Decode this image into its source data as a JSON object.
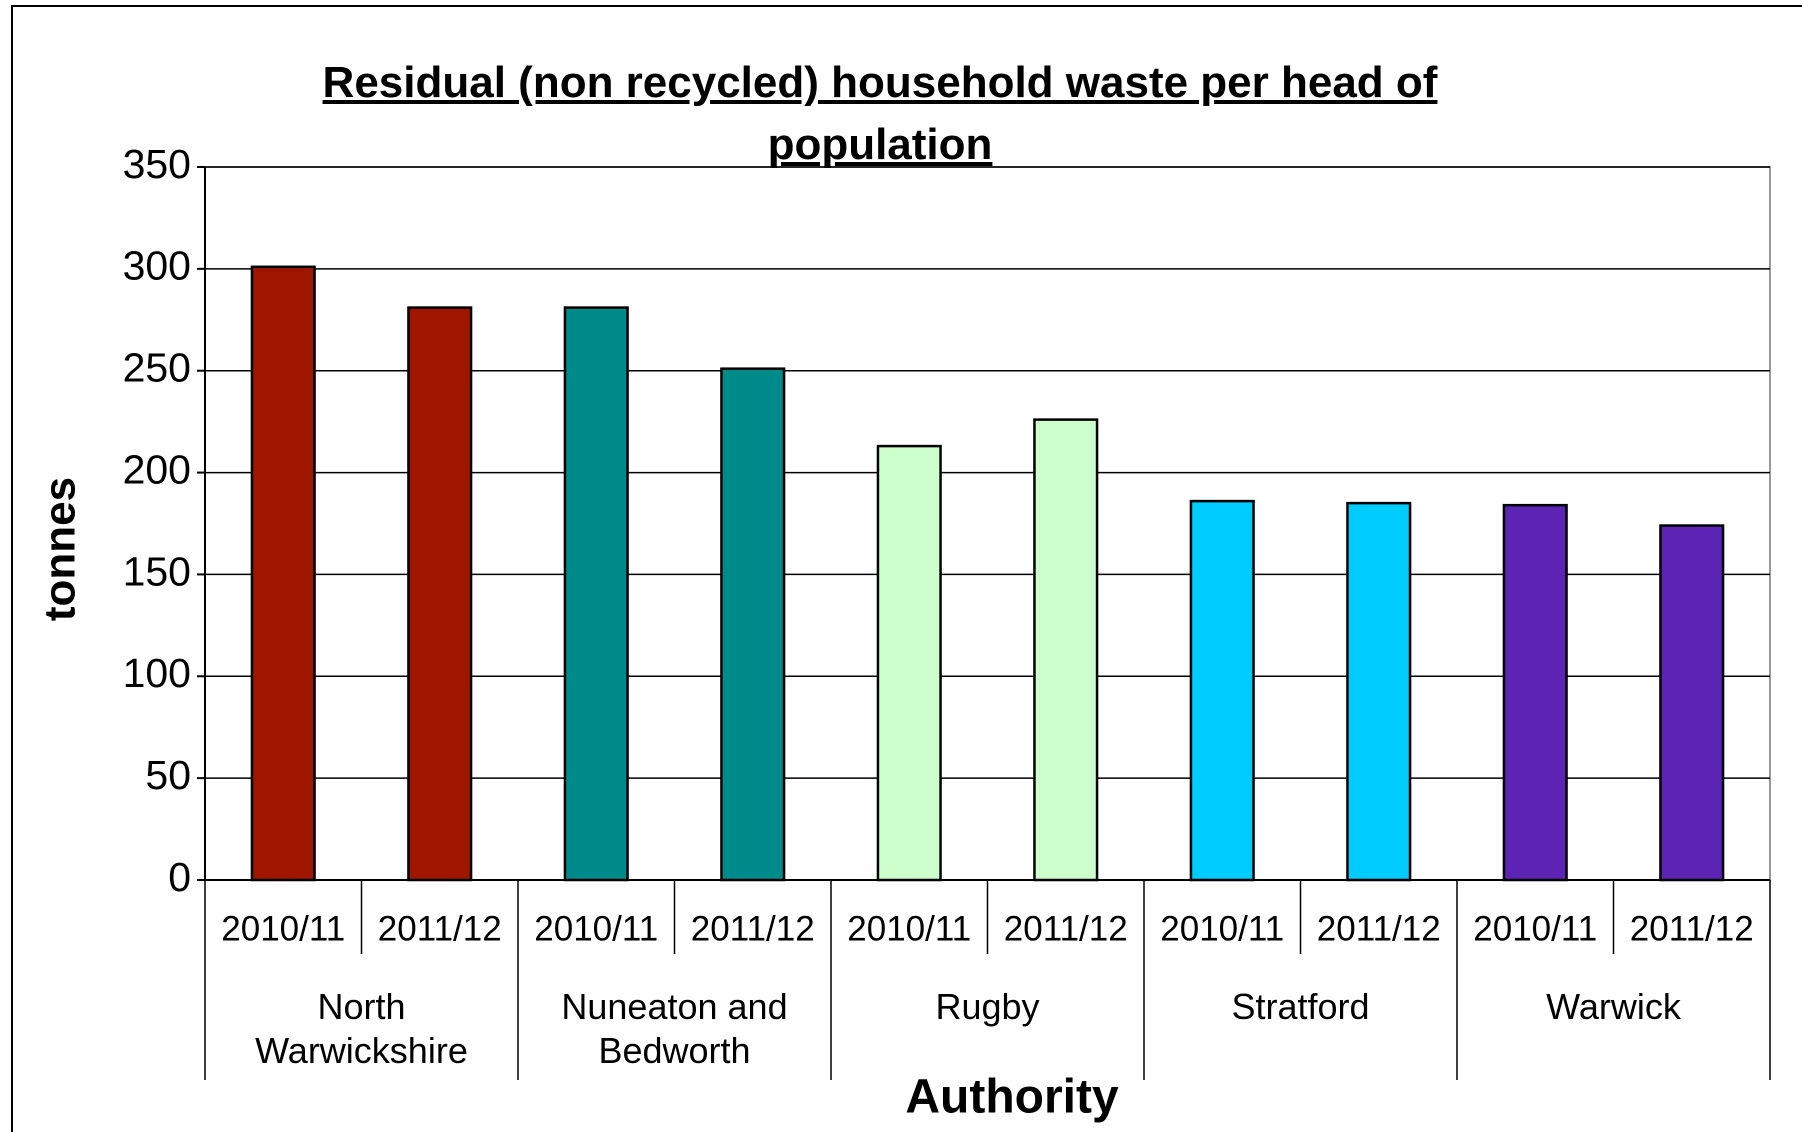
{
  "chart_data": {
    "type": "bar",
    "title": "Residual (non recycled) household waste per head of population",
    "x_label": "Authority",
    "y_label": "tonnes",
    "categories": [
      "2010/11",
      "2011/12"
    ],
    "series": [
      {
        "name": "North Warwickshire",
        "color": "#9e1500",
        "values": [
          301,
          281
        ]
      },
      {
        "name": "Nuneaton and Bedworth",
        "color": "#008b8b",
        "values": [
          281,
          251
        ]
      },
      {
        "name": "Rugby",
        "color": "#ccffcc",
        "values": [
          213,
          226
        ]
      },
      {
        "name": "Stratford",
        "color": "#00ccff",
        "values": [
          186,
          185
        ]
      },
      {
        "name": "Warwick",
        "color": "#5b24b5",
        "values": [
          184,
          174
        ]
      }
    ],
    "ylim": [
      0,
      350
    ],
    "yticks": [
      0,
      50,
      100,
      150,
      200,
      250,
      300,
      350
    ],
    "grid": true
  }
}
